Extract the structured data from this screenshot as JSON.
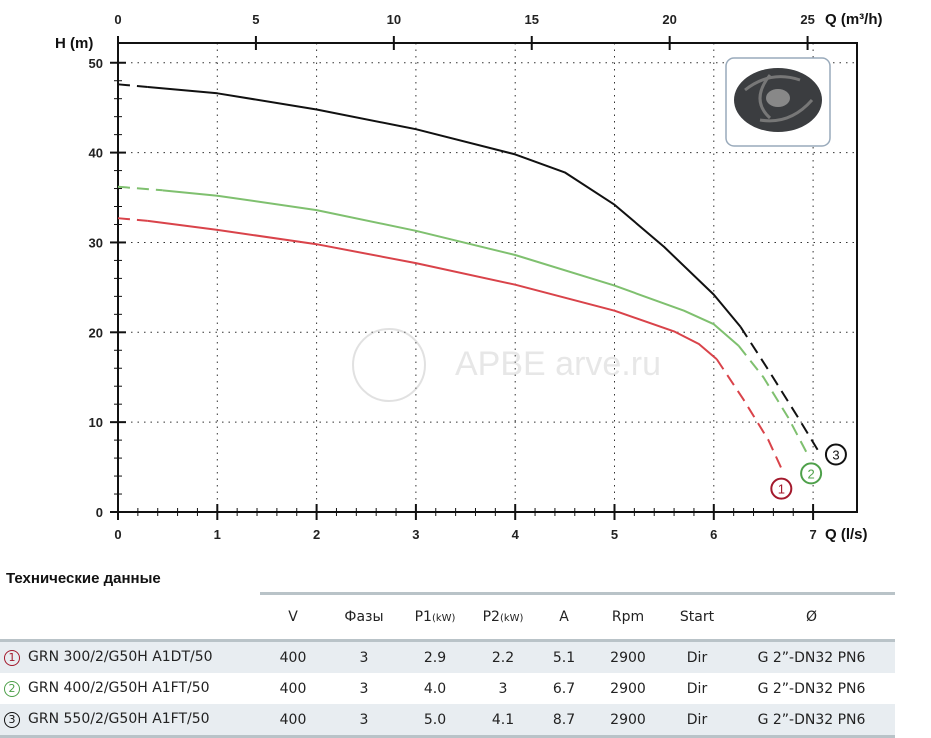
{
  "chart_data": {
    "type": "line",
    "xlabel": "Q (l/s)",
    "x2label": "Q (m³/h)",
    "ylabel": "H (m)",
    "xlim": [
      0,
      7.45
    ],
    "ylim": [
      0,
      52.2
    ],
    "xticks": [
      "0",
      "1",
      "2",
      "3",
      "4",
      "5",
      "6",
      "7"
    ],
    "x2ticks": [
      "0",
      "5",
      "10",
      "15",
      "20",
      "25"
    ],
    "yticks": [
      "0",
      "10",
      "20",
      "30",
      "40",
      "50"
    ],
    "grid": true,
    "watermark": "АРВЕ arve.ru",
    "series": [
      {
        "name": "1",
        "color": "#d9434a",
        "label_color": "#a3192c",
        "solid": [
          [
            0.3,
            32.4
          ],
          [
            1,
            31.4
          ],
          [
            2,
            29.8
          ],
          [
            3,
            27.7
          ],
          [
            4,
            25.3
          ],
          [
            5,
            22.4
          ],
          [
            5.6,
            20.1
          ],
          [
            5.85,
            18.7
          ],
          [
            6.03,
            17
          ]
        ],
        "dashed": [
          [
            0,
            32.7
          ],
          [
            0.3,
            32.4
          ]
        ],
        "dashed_end": [
          [
            6.03,
            17
          ],
          [
            6.3,
            12.5
          ],
          [
            6.55,
            8
          ],
          [
            6.7,
            4.4
          ]
        ]
      },
      {
        "name": "2",
        "color": "#7fc06f",
        "label_color": "#4ea04a",
        "solid": [
          [
            0.45,
            35.8
          ],
          [
            1,
            35.2
          ],
          [
            2,
            33.6
          ],
          [
            3,
            31.3
          ],
          [
            4,
            28.6
          ],
          [
            5,
            25.2
          ],
          [
            5.7,
            22.4
          ],
          [
            6,
            20.9
          ],
          [
            6.25,
            18.5
          ]
        ],
        "dashed": [
          [
            0,
            36.2
          ],
          [
            0.45,
            35.8
          ]
        ],
        "dashed_end": [
          [
            6.25,
            18.5
          ],
          [
            6.5,
            15
          ],
          [
            6.75,
            10.5
          ],
          [
            6.95,
            6.3
          ]
        ]
      },
      {
        "name": "3",
        "color": "#111111",
        "label_color": "#111111",
        "solid": [
          [
            0.3,
            47.3
          ],
          [
            1,
            46.6
          ],
          [
            2,
            44.8
          ],
          [
            3,
            42.6
          ],
          [
            4,
            39.8
          ],
          [
            4.5,
            37.8
          ],
          [
            5,
            34.2
          ],
          [
            5.5,
            29.5
          ],
          [
            6,
            24.2
          ],
          [
            6.27,
            20.6
          ]
        ],
        "dashed": [
          [
            0,
            47.6
          ],
          [
            0.3,
            47.3
          ]
        ],
        "dashed_end": [
          [
            6.27,
            20.6
          ],
          [
            6.55,
            15.8
          ],
          [
            6.85,
            10.5
          ],
          [
            7.08,
            6.3
          ]
        ]
      }
    ]
  },
  "table": {
    "title": "Технические данные",
    "headers": [
      "V",
      "Фазы",
      "P1",
      "(kW)",
      "P2",
      "(kW)",
      "A",
      "Rpm",
      "Start",
      "Ø"
    ],
    "rows": [
      {
        "num": "1",
        "model": "GRN 300/2/G50H A1DT/50",
        "v": "400",
        "phases": "3",
        "p1": "2.9",
        "p2": "2.2",
        "a": "5.1",
        "rpm": "2900",
        "start": "Dir",
        "conn": "G 2”-DN32 PN6"
      },
      {
        "num": "2",
        "model": "GRN 400/2/G50H A1FT/50",
        "v": "400",
        "phases": "3",
        "p1": "4.0",
        "p2": "3",
        "a": "6.7",
        "rpm": "2900",
        "start": "Dir",
        "conn": "G 2”-DN32 PN6"
      },
      {
        "num": "3",
        "model": "GRN 550/2/G50H A1FT/50",
        "v": "400",
        "phases": "3",
        "p1": "5.0",
        "p2": "4.1",
        "a": "8.7",
        "rpm": "2900",
        "start": "Dir",
        "conn": "G 2”-DN32 PN6"
      }
    ]
  }
}
